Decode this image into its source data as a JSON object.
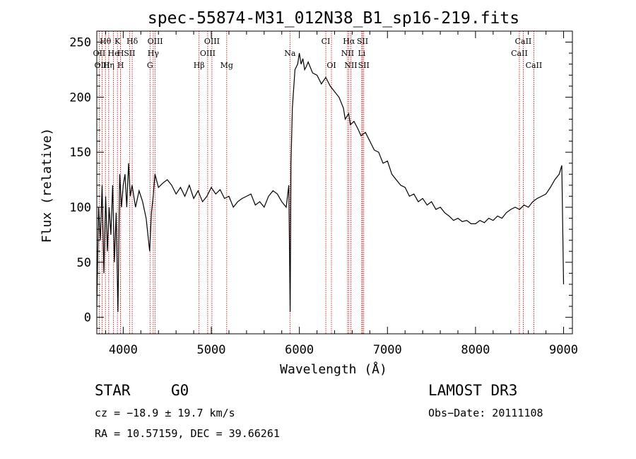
{
  "chart_data": {
    "type": "line",
    "title": "spec-55874-M31_012N38_B1_sp16-219.fits",
    "xlabel": "Wavelength (Å)",
    "ylabel": "Flux (relative)",
    "xlim": [
      3700,
      9100
    ],
    "ylim": [
      -15,
      260
    ],
    "xticks": [
      4000,
      5000,
      6000,
      7000,
      8000,
      9000
    ],
    "yticks": [
      0,
      50,
      100,
      150,
      200,
      250
    ],
    "series": [
      {
        "name": "flux",
        "x": [
          3700,
          3720,
          3740,
          3760,
          3780,
          3800,
          3820,
          3840,
          3860,
          3880,
          3900,
          3920,
          3940,
          3960,
          3980,
          4000,
          4020,
          4040,
          4060,
          4080,
          4100,
          4140,
          4180,
          4220,
          4260,
          4300,
          4320,
          4340,
          4360,
          4400,
          4450,
          4500,
          4550,
          4600,
          4650,
          4700,
          4750,
          4800,
          4850,
          4900,
          4950,
          5000,
          5050,
          5100,
          5150,
          5200,
          5250,
          5300,
          5350,
          5400,
          5450,
          5500,
          5550,
          5600,
          5650,
          5700,
          5750,
          5800,
          5850,
          5880,
          5895,
          5905,
          5920,
          5950,
          5980,
          6000,
          6020,
          6040,
          6060,
          6080,
          6100,
          6150,
          6200,
          6250,
          6300,
          6350,
          6400,
          6450,
          6500,
          6520,
          6560,
          6580,
          6620,
          6660,
          6700,
          6750,
          6800,
          6850,
          6900,
          6950,
          7000,
          7050,
          7100,
          7150,
          7200,
          7250,
          7300,
          7350,
          7400,
          7450,
          7500,
          7550,
          7600,
          7650,
          7700,
          7750,
          7800,
          7850,
          7900,
          7950,
          8000,
          8050,
          8100,
          8150,
          8200,
          8250,
          8300,
          8350,
          8400,
          8450,
          8500,
          8550,
          8600,
          8650,
          8700,
          8750,
          8800,
          8850,
          8900,
          8950,
          8980,
          9000
        ],
        "y": [
          10,
          100,
          70,
          120,
          40,
          110,
          60,
          100,
          75,
          120,
          50,
          95,
          5,
          130,
          100,
          120,
          130,
          100,
          140,
          110,
          120,
          100,
          115,
          105,
          90,
          60,
          95,
          110,
          130,
          118,
          122,
          125,
          120,
          112,
          118,
          110,
          120,
          108,
          115,
          105,
          110,
          118,
          112,
          116,
          108,
          110,
          100,
          105,
          108,
          110,
          112,
          102,
          105,
          100,
          110,
          115,
          112,
          105,
          100,
          120,
          5,
          140,
          190,
          225,
          230,
          240,
          230,
          235,
          225,
          228,
          232,
          222,
          220,
          212,
          218,
          210,
          205,
          200,
          190,
          180,
          185,
          175,
          178,
          172,
          165,
          168,
          160,
          152,
          150,
          140,
          142,
          130,
          125,
          120,
          118,
          110,
          112,
          105,
          108,
          102,
          105,
          98,
          100,
          95,
          92,
          88,
          90,
          87,
          88,
          85,
          85,
          88,
          86,
          90,
          88,
          92,
          90,
          95,
          98,
          100,
          98,
          102,
          100,
          105,
          108,
          110,
          112,
          118,
          125,
          130,
          138,
          30
        ]
      }
    ],
    "emission_lines": [
      {
        "label": "Hθ",
        "x": 3798,
        "row": 0
      },
      {
        "label": "K",
        "x": 3934,
        "row": 0
      },
      {
        "label": "Hδ",
        "x": 4102,
        "row": 0
      },
      {
        "label": "OIII",
        "x": 4363,
        "row": 0
      },
      {
        "label": "OIII",
        "x": 5007,
        "row": 0
      },
      {
        "label": "CI",
        "x": 6300,
        "row": 0
      },
      {
        "label": "Hα",
        "x": 6563,
        "row": 0
      },
      {
        "label": "SII",
        "x": 6717,
        "row": 0
      },
      {
        "label": "CaII",
        "x": 8542,
        "row": 0
      },
      {
        "label": "OII",
        "x": 3727,
        "row": 1
      },
      {
        "label": "He",
        "x": 3889,
        "row": 1
      },
      {
        "label": "H",
        "x": 3970,
        "row": 1
      },
      {
        "label": "SII",
        "x": 4072,
        "row": 1
      },
      {
        "label": "Hγ",
        "x": 4341,
        "row": 1
      },
      {
        "label": "OIII",
        "x": 4959,
        "row": 1
      },
      {
        "label": "Na",
        "x": 5893,
        "row": 1
      },
      {
        "label": "NII",
        "x": 6548,
        "row": 1
      },
      {
        "label": "Li",
        "x": 6708,
        "row": 1
      },
      {
        "label": "CaII",
        "x": 8498,
        "row": 1
      },
      {
        "label": "OIII",
        "x": 3760,
        "row": 2
      },
      {
        "label": "Hη",
        "x": 3835,
        "row": 2
      },
      {
        "label": "H",
        "x": 3970,
        "row": 2
      },
      {
        "label": "G",
        "x": 4304,
        "row": 2
      },
      {
        "label": "Hβ",
        "x": 4861,
        "row": 2
      },
      {
        "label": "Mg",
        "x": 5175,
        "row": 2
      },
      {
        "label": "OI",
        "x": 6364,
        "row": 2
      },
      {
        "label": "NII",
        "x": 6584,
        "row": 2
      },
      {
        "label": "SII",
        "x": 6731,
        "row": 2
      },
      {
        "label": "CaII",
        "x": 8662,
        "row": 2
      }
    ],
    "line_colors": {
      "flux": "#000000",
      "marker": "#cc0000"
    }
  },
  "info": {
    "class": "STAR",
    "subclass": "G0",
    "survey": "LAMOST DR3",
    "redshift": "cz = −18.9 ± 19.7 km/s",
    "obs_date": "Obs−Date: 20111108",
    "coords": "RA =  10.57159, DEC =  39.66261"
  }
}
